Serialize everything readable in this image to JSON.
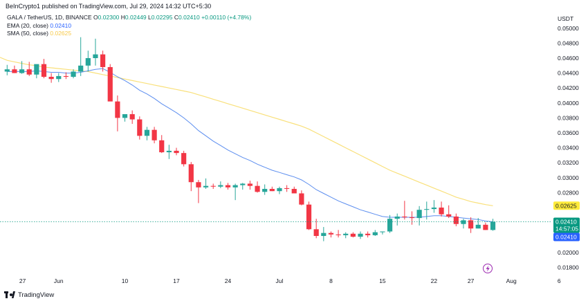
{
  "publish": {
    "text": "BeInCrypto1 published on TradingView.com, Jul 29, 2024 14:32 UTC+5:30"
  },
  "legend": {
    "symbol": "GALA / TetherUS, 1D, BINANCE",
    "open_key": "O",
    "open": "0.02300",
    "high_key": "H",
    "high": "0.02449",
    "low_key": "L",
    "low": "0.02295",
    "close_key": "C",
    "close": "0.02410",
    "change": "+0.00110 (+4.78%)",
    "ema_label": "EMA (20, close)",
    "ema_value": "0.02410",
    "sma_label": "SMA (50, close)",
    "sma_value": "0.02625"
  },
  "currency": "USDT",
  "price_axis": {
    "ticks": [
      "0.05000",
      "0.04800",
      "0.04600",
      "0.04400",
      "0.04200",
      "0.04000",
      "0.03800",
      "0.03600",
      "0.03400",
      "0.03200",
      "0.03000",
      "0.02800",
      "0.02600",
      "0.02400",
      "0.02200",
      "0.02000",
      "0.01800"
    ],
    "tags": {
      "sma": "0.02625",
      "price": "0.02410",
      "countdown": "14:57:05",
      "ema": "0.02410"
    }
  },
  "time_axis": {
    "ticks": [
      "27",
      "Jun",
      "10",
      "17",
      "24",
      "Jul",
      "8",
      "15",
      "22",
      "27",
      "Aug",
      "6"
    ]
  },
  "footer": {
    "brand": "TradingView"
  },
  "colors": {
    "up": "#26a69a",
    "down": "#f23645",
    "ema": "#5b8def",
    "sma": "#f9e07a",
    "price_tag": "#089981",
    "ema_tag": "#2962ff",
    "sma_tag": "#ffeb3b",
    "flash": "#9c27b0"
  },
  "icons": {
    "flash": "lightning-icon"
  },
  "chart_data": {
    "type": "candlestick",
    "title": "GALA / TetherUS, 1D, BINANCE",
    "x": [
      "May 24",
      "May 25",
      "May 26",
      "May 27",
      "May 28",
      "May 29",
      "May 30",
      "May 31",
      "Jun 1",
      "Jun 2",
      "Jun 3",
      "Jun 4",
      "Jun 5",
      "Jun 6",
      "Jun 7",
      "Jun 8",
      "Jun 9",
      "Jun 10",
      "Jun 11",
      "Jun 12",
      "Jun 13",
      "Jun 14",
      "Jun 15",
      "Jun 16",
      "Jun 17",
      "Jun 18",
      "Jun 19",
      "Jun 20",
      "Jun 21",
      "Jun 22",
      "Jun 23",
      "Jun 24",
      "Jun 25",
      "Jun 26",
      "Jun 27",
      "Jun 28",
      "Jun 29",
      "Jun 30",
      "Jul 1",
      "Jul 2",
      "Jul 3",
      "Jul 4",
      "Jul 5",
      "Jul 6",
      "Jul 7",
      "Jul 8",
      "Jul 9",
      "Jul 10",
      "Jul 11",
      "Jul 12",
      "Jul 13",
      "Jul 14",
      "Jul 15",
      "Jul 16",
      "Jul 17",
      "Jul 18",
      "Jul 19",
      "Jul 20",
      "Jul 21",
      "Jul 22",
      "Jul 23",
      "Jul 24",
      "Jul 25",
      "Jul 26",
      "Jul 27",
      "Jul 28",
      "Jul 29"
    ],
    "open": [
      0.0442,
      0.0445,
      0.044,
      0.0445,
      0.0438,
      0.0452,
      0.0435,
      0.0432,
      0.0436,
      0.0435,
      0.0442,
      0.045,
      0.046,
      0.0465,
      0.0448,
      0.0402,
      0.038,
      0.0385,
      0.0378,
      0.0356,
      0.0364,
      0.035,
      0.0334,
      0.0336,
      0.0333,
      0.0318,
      0.0294,
      0.0287,
      0.0289,
      0.0288,
      0.029,
      0.0287,
      0.029,
      0.0292,
      0.0289,
      0.0281,
      0.0285,
      0.0282,
      0.0286,
      0.0285,
      0.0279,
      0.0264,
      0.0231,
      0.0222,
      0.0226,
      0.0224,
      0.0223,
      0.0225,
      0.0221,
      0.0225,
      0.0223,
      0.0227,
      0.0228,
      0.0245,
      0.0248,
      0.0247,
      0.0246,
      0.0257,
      0.0258,
      0.026,
      0.0251,
      0.0248,
      0.0238,
      0.0243,
      0.0232,
      0.0237,
      0.023
    ],
    "high": [
      0.0451,
      0.045,
      0.0456,
      0.0455,
      0.0449,
      0.0459,
      0.044,
      0.044,
      0.0441,
      0.0445,
      0.0488,
      0.047,
      0.0486,
      0.047,
      0.0452,
      0.041,
      0.0385,
      0.039,
      0.0382,
      0.0368,
      0.0368,
      0.0357,
      0.0344,
      0.034,
      0.0336,
      0.0321,
      0.0297,
      0.0299,
      0.0292,
      0.0295,
      0.0293,
      0.0292,
      0.0293,
      0.0296,
      0.0295,
      0.0291,
      0.0288,
      0.0288,
      0.029,
      0.0288,
      0.0283,
      0.0268,
      0.0245,
      0.0234,
      0.0228,
      0.023,
      0.0227,
      0.0227,
      0.0228,
      0.0228,
      0.023,
      0.0228,
      0.025,
      0.0252,
      0.0269,
      0.0255,
      0.0262,
      0.0268,
      0.027,
      0.0268,
      0.0263,
      0.0252,
      0.0245,
      0.0247,
      0.0246,
      0.024,
      0.0245
    ],
    "low": [
      0.0437,
      0.044,
      0.0439,
      0.0436,
      0.0433,
      0.0433,
      0.0427,
      0.0428,
      0.0432,
      0.0433,
      0.0436,
      0.0442,
      0.045,
      0.0442,
      0.0403,
      0.0362,
      0.0375,
      0.0372,
      0.0351,
      0.035,
      0.0346,
      0.0333,
      0.0325,
      0.033,
      0.0315,
      0.0282,
      0.0266,
      0.0285,
      0.0285,
      0.0286,
      0.0284,
      0.027,
      0.0284,
      0.0284,
      0.028,
      0.0277,
      0.0282,
      0.0278,
      0.0281,
      0.028,
      0.0263,
      0.023,
      0.0219,
      0.0215,
      0.022,
      0.022,
      0.0219,
      0.022,
      0.0218,
      0.022,
      0.0222,
      0.0224,
      0.0226,
      0.0236,
      0.0244,
      0.0237,
      0.0236,
      0.0244,
      0.0253,
      0.0248,
      0.0246,
      0.0235,
      0.0232,
      0.0226,
      0.0232,
      0.023,
      0.0229
    ],
    "close": [
      0.0445,
      0.044,
      0.0445,
      0.0438,
      0.0452,
      0.0435,
      0.0432,
      0.0436,
      0.0435,
      0.0442,
      0.045,
      0.046,
      0.0465,
      0.0448,
      0.0402,
      0.038,
      0.0385,
      0.0378,
      0.0356,
      0.0364,
      0.035,
      0.0334,
      0.0336,
      0.0333,
      0.0318,
      0.0294,
      0.0287,
      0.0289,
      0.0288,
      0.029,
      0.0287,
      0.029,
      0.0292,
      0.0289,
      0.0281,
      0.0285,
      0.0282,
      0.0286,
      0.0285,
      0.0279,
      0.0264,
      0.0231,
      0.0222,
      0.0226,
      0.0224,
      0.0223,
      0.0225,
      0.0221,
      0.0225,
      0.0223,
      0.0227,
      0.0228,
      0.0245,
      0.0248,
      0.0247,
      0.0246,
      0.0257,
      0.0258,
      0.026,
      0.0251,
      0.0248,
      0.0238,
      0.0243,
      0.0232,
      0.0237,
      0.023,
      0.0241
    ],
    "ema": [
      0.0442,
      0.0442,
      0.0442,
      0.0442,
      0.0443,
      0.0442,
      0.0441,
      0.0441,
      0.044,
      0.044,
      0.0441,
      0.0443,
      0.0445,
      0.0446,
      0.0441,
      0.0435,
      0.043,
      0.0424,
      0.0417,
      0.0412,
      0.0406,
      0.0399,
      0.0393,
      0.0387,
      0.038,
      0.0372,
      0.0363,
      0.0356,
      0.0349,
      0.0343,
      0.0337,
      0.0332,
      0.0327,
      0.0323,
      0.0318,
      0.0314,
      0.031,
      0.0307,
      0.0304,
      0.0301,
      0.0297,
      0.0291,
      0.0284,
      0.0279,
      0.0274,
      0.0269,
      0.0265,
      0.0261,
      0.0257,
      0.0254,
      0.0251,
      0.0248,
      0.0247,
      0.0247,
      0.0247,
      0.0247,
      0.0247,
      0.0248,
      0.0249,
      0.0249,
      0.0248,
      0.0247,
      0.0246,
      0.0245,
      0.0244,
      0.0242,
      0.0241
    ],
    "sma": [
      0.0457,
      0.0455,
      0.0453,
      0.0451,
      0.045,
      0.0448,
      0.0447,
      0.0446,
      0.0445,
      0.0444,
      0.0443,
      0.0442,
      0.044,
      0.0438,
      0.0436,
      0.0434,
      0.0432,
      0.043,
      0.0428,
      0.0426,
      0.0424,
      0.0422,
      0.042,
      0.0418,
      0.0416,
      0.0414,
      0.0411,
      0.0408,
      0.0405,
      0.0402,
      0.0399,
      0.0396,
      0.0393,
      0.039,
      0.0387,
      0.0384,
      0.0381,
      0.0378,
      0.0375,
      0.0372,
      0.0369,
      0.0365,
      0.036,
      0.0355,
      0.035,
      0.0345,
      0.034,
      0.0335,
      0.033,
      0.0325,
      0.032,
      0.0315,
      0.031,
      0.0306,
      0.0302,
      0.0298,
      0.0294,
      0.029,
      0.0286,
      0.0282,
      0.0278,
      0.0274,
      0.0271,
      0.0268,
      0.0266,
      0.0264,
      0.02625
    ],
    "ylim": [
      0.0172,
      0.051
    ],
    "grid": false
  }
}
